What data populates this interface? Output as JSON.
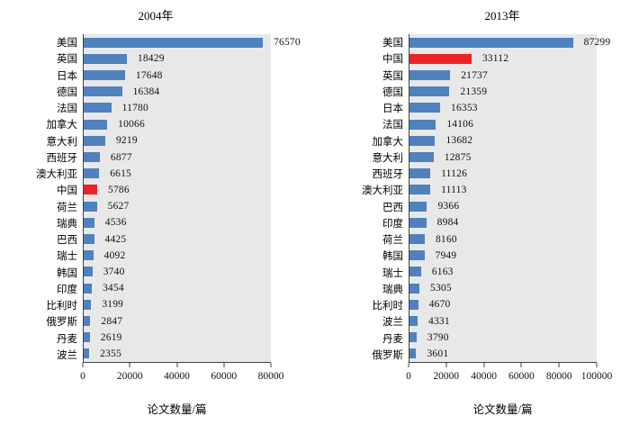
{
  "chart_data": [
    {
      "type": "bar",
      "orientation": "horizontal",
      "title": "2004年",
      "xlabel": "论文数量/篇",
      "xlim": [
        0,
        80000
      ],
      "xtick_values": [
        0,
        20000,
        40000,
        60000,
        80000
      ],
      "xtick_labels": [
        "0",
        "20000",
        "40000",
        "60000",
        "80000"
      ],
      "grid": false,
      "legend": "none",
      "categories": [
        "美国",
        "英国",
        "日本",
        "德国",
        "法国",
        "加拿大",
        "意大利",
        "西班牙",
        "澳大利亚",
        "中国",
        "荷兰",
        "瑞典",
        "巴西",
        "瑞士",
        "韩国",
        "印度",
        "比利时",
        "俄罗斯",
        "丹麦",
        "波兰"
      ],
      "values": [
        76570,
        18429,
        17648,
        16384,
        11780,
        10066,
        9219,
        6877,
        6615,
        5786,
        5627,
        4536,
        4425,
        4092,
        3740,
        3454,
        3199,
        2847,
        2619,
        2355
      ],
      "highlight_category": "中国",
      "style": {
        "bar_color": "#4F81BD",
        "highlight_color": "#EC2324",
        "plot_bg": "#E8E8E8",
        "axis_color": "#404040",
        "text_color": "#000000"
      }
    },
    {
      "type": "bar",
      "orientation": "horizontal",
      "title": "2013年",
      "xlabel": "论文数量/篇",
      "xlim": [
        0,
        100000
      ],
      "xtick_values": [
        0,
        20000,
        40000,
        60000,
        80000,
        100000
      ],
      "xtick_labels": [
        "0",
        "20000",
        "40000",
        "60000",
        "80000",
        "100000"
      ],
      "grid": false,
      "legend": "none",
      "categories": [
        "美国",
        "中国",
        "英国",
        "德国",
        "日本",
        "法国",
        "加拿大",
        "意大利",
        "西班牙",
        "澳大利亚",
        "巴西",
        "印度",
        "荷兰",
        "韩国",
        "瑞士",
        "瑞典",
        "比利时",
        "波兰",
        "丹麦",
        "俄罗斯"
      ],
      "values": [
        87299,
        33112,
        21737,
        21359,
        16353,
        14106,
        13682,
        12875,
        11126,
        11113,
        9366,
        8984,
        8160,
        7949,
        6163,
        5305,
        4670,
        4331,
        3790,
        3601
      ],
      "highlight_category": "中国",
      "style": {
        "bar_color": "#4F81BD",
        "highlight_color": "#EC2324",
        "plot_bg": "#E8E8E8",
        "axis_color": "#404040",
        "text_color": "#000000"
      }
    }
  ]
}
